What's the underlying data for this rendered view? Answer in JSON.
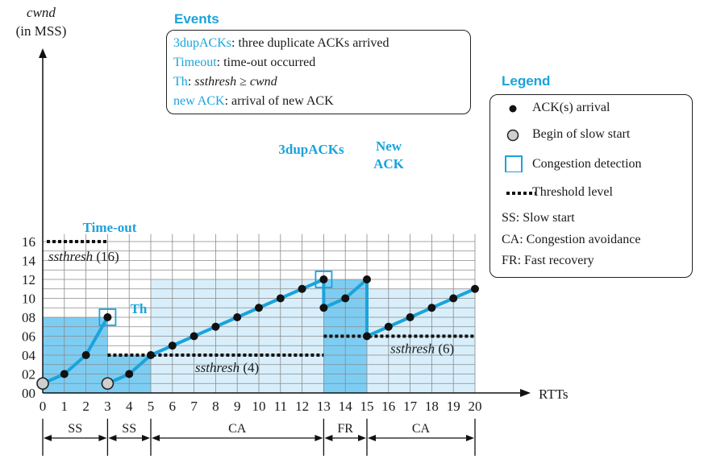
{
  "chart_data": {
    "type": "line",
    "y_axis_label": [
      "cwnd",
      "(in MSS)"
    ],
    "x_axis_label": "RTTs",
    "x_ticks": [
      "0",
      "1",
      "2",
      "3",
      "4",
      "5",
      "6",
      "7",
      "8",
      "9",
      "10",
      "11",
      "12",
      "13",
      "14",
      "15",
      "16",
      "17",
      "18",
      "19",
      "20"
    ],
    "y_ticks": [
      "00",
      "02",
      "04",
      "06",
      "08",
      "10",
      "12",
      "14",
      "16"
    ],
    "xlim": [
      0,
      20
    ],
    "ylim": [
      0,
      16
    ],
    "grid": true,
    "segments": [
      [
        [
          0,
          1
        ],
        [
          1,
          2
        ],
        [
          2,
          4
        ],
        [
          3,
          8
        ]
      ],
      [
        [
          3,
          1
        ],
        [
          4,
          2
        ],
        [
          5,
          4
        ],
        [
          6,
          5
        ],
        [
          7,
          6
        ],
        [
          8,
          7
        ],
        [
          9,
          8
        ],
        [
          10,
          9
        ],
        [
          11,
          10
        ],
        [
          12,
          11
        ],
        [
          13,
          12
        ]
      ],
      [
        [
          13,
          12
        ],
        [
          13,
          9
        ],
        [
          14,
          10
        ],
        [
          15,
          12
        ]
      ],
      [
        [
          15,
          12
        ],
        [
          15,
          6
        ],
        [
          16,
          7
        ],
        [
          17,
          8
        ],
        [
          18,
          9
        ],
        [
          19,
          10
        ],
        [
          20,
          11
        ]
      ]
    ],
    "ack_points": [
      [
        1,
        2
      ],
      [
        2,
        4
      ],
      [
        3,
        8
      ],
      [
        4,
        2
      ],
      [
        5,
        4
      ],
      [
        6,
        5
      ],
      [
        7,
        6
      ],
      [
        8,
        7
      ],
      [
        9,
        8
      ],
      [
        10,
        9
      ],
      [
        11,
        10
      ],
      [
        12,
        11
      ],
      [
        13,
        12
      ],
      [
        13,
        9
      ],
      [
        14,
        10
      ],
      [
        15,
        12
      ],
      [
        15,
        6
      ],
      [
        16,
        7
      ],
      [
        17,
        8
      ],
      [
        18,
        9
      ],
      [
        19,
        10
      ],
      [
        20,
        11
      ]
    ],
    "slow_start_points": [
      [
        0,
        1
      ],
      [
        3,
        1
      ]
    ],
    "congestion_points": [
      [
        3,
        8
      ],
      [
        13,
        12
      ]
    ],
    "thresholds": [
      {
        "x": [
          0,
          3
        ],
        "y": 16,
        "label": "ssthresh",
        "value": "(16)"
      },
      {
        "x": [
          3,
          13
        ],
        "y": 4,
        "label": "ssthresh",
        "value": "(4)"
      },
      {
        "x": [
          13,
          20
        ],
        "y": 6,
        "label": "ssthresh",
        "value": "(6)"
      }
    ],
    "regions": [
      {
        "x": [
          0,
          3
        ],
        "y_top": 8,
        "color": "#7dcdf3"
      },
      {
        "x": [
          3,
          5
        ],
        "y_top": 4,
        "color": "#7dcdf3"
      },
      {
        "x": [
          5,
          13
        ],
        "y_top": 12,
        "color": "#d8effb"
      },
      {
        "x": [
          13,
          15
        ],
        "y_top": 12,
        "color": "#7dcdf3"
      },
      {
        "x": [
          15,
          20
        ],
        "y_top": 11,
        "color": "#d8effb"
      }
    ],
    "annotations": [
      {
        "text": "Time-out",
        "x": 3,
        "y": 8
      },
      {
        "text": "Th",
        "x": 5,
        "y": 4
      },
      {
        "text": "3dupACKs",
        "x": 13,
        "y": 12
      },
      {
        "text": "New",
        "x": 15,
        "y": 12
      },
      {
        "text": "ACK",
        "x": 15,
        "y": 12
      }
    ],
    "phases": [
      {
        "label": "SS",
        "x": [
          0,
          3
        ]
      },
      {
        "label": "SS",
        "x": [
          3,
          5
        ]
      },
      {
        "label": "CA",
        "x": [
          5,
          13
        ]
      },
      {
        "label": "FR",
        "x": [
          13,
          15
        ]
      },
      {
        "label": "CA",
        "x": [
          15,
          20
        ]
      }
    ]
  },
  "colors": {
    "accent": "#1aa3dc",
    "line": "#1aa3dc",
    "dark_fill": "#7dcdf3",
    "light_fill": "#d8effb",
    "grid": "#8a8a8a",
    "point": "#111111",
    "start_point": "#cfcfcf"
  },
  "events": {
    "title": "Events",
    "items": [
      {
        "key": "3dupACKs",
        "text": ": three duplicate ACKs arrived"
      },
      {
        "key": "Timeout",
        "text": ": time-out occurred"
      },
      {
        "key": "Th",
        "text": ": ",
        "italic": "ssthresh",
        "op": " ≥ ",
        "italic2": "cwnd"
      },
      {
        "key": "new ACK",
        "text": ": arrival of new ACK"
      }
    ]
  },
  "legend": {
    "title": "Legend",
    "items": [
      {
        "icon": "dot-icon",
        "text": "ACK(s) arrival"
      },
      {
        "icon": "circle-icon",
        "text": "Begin of slow start"
      },
      {
        "icon": "square-icon",
        "text": "Congestion detection"
      },
      {
        "icon": "dashed-line-icon",
        "text": "Threshold level"
      },
      {
        "icon": "",
        "text": "SS: Slow start"
      },
      {
        "icon": "",
        "text": "CA: Congestion avoidance"
      },
      {
        "icon": "",
        "text": "FR: Fast recovery"
      }
    ]
  }
}
